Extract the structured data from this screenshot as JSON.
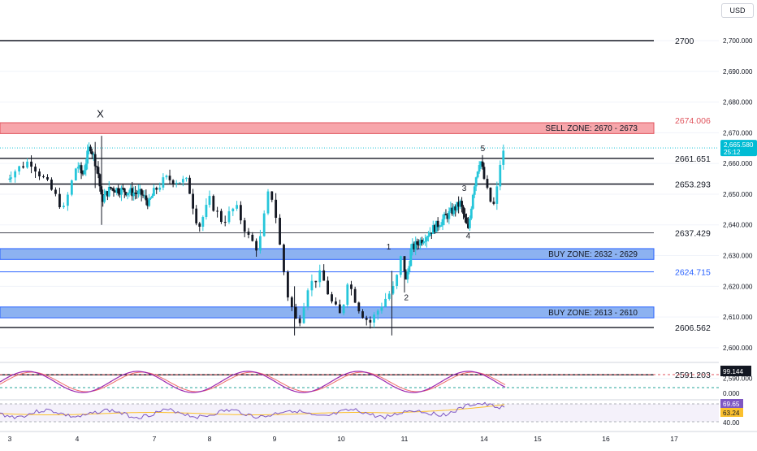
{
  "currency": "USD",
  "colors": {
    "up": "#26c6da",
    "down": "#131722",
    "sell_zone_fill": "#f7a1a7",
    "sell_zone_border": "#e0535c",
    "buy_zone_fill": "#86aef0",
    "buy_zone_border": "#2962ff",
    "red_price": "#e0535c",
    "blue_price": "#2962ff",
    "price_badge": "#00bcd4",
    "stoch_line": "#9c27b0",
    "rsi_line": "#7e57c2",
    "rsi_ma": "#fbc02d"
  },
  "chart_data": {
    "type": "candlestick",
    "price_axis": {
      "ticks": [
        "2,700.000",
        "2,690.000",
        "2,680.000",
        "2,670.000",
        "2,660.000",
        "2,650.000",
        "2,640.000",
        "2,630.000",
        "2,620.000",
        "2,610.000",
        "2,600.000",
        "2,590.000"
      ],
      "tick_values": [
        2700,
        2690,
        2680,
        2670,
        2660,
        2650,
        2640,
        2630,
        2620,
        2610,
        2600,
        2590
      ],
      "range": [
        2585,
        2705
      ]
    },
    "time_axis": {
      "ticks": [
        "3",
        "4",
        "7",
        "8",
        "9",
        "10",
        "11",
        "14",
        "15",
        "16",
        "17"
      ]
    },
    "current_price": {
      "value": "2,665.580",
      "countdown": "25:12"
    },
    "zones": [
      {
        "label": "SELL ZONE: 2670 - 2673",
        "low": 2670,
        "high": 2673,
        "kind": "sell"
      },
      {
        "label": "BUY ZONE: 2632 - 2629",
        "low": 2629,
        "high": 2632,
        "kind": "buy"
      },
      {
        "label": "BUY ZONE: 2613 - 2610",
        "low": 2610,
        "high": 2613,
        "kind": "buy"
      }
    ],
    "levels": [
      {
        "label": "2700",
        "value": 2700,
        "style": "black"
      },
      {
        "label": "2674.006",
        "value": 2674.006,
        "style": "red-text"
      },
      {
        "label": "2661.651",
        "value": 2661.651,
        "style": "black"
      },
      {
        "label": "2653.293",
        "value": 2653.293,
        "style": "black"
      },
      {
        "label": "2637.429",
        "value": 2637.429,
        "style": "thin"
      },
      {
        "label": "2624.715",
        "value": 2624.715,
        "style": "blue"
      },
      {
        "label": "2606.562",
        "value": 2606.562,
        "style": "black"
      },
      {
        "label": "2591.203",
        "value": 2591.203,
        "style": "black"
      }
    ],
    "wave_labels": [
      {
        "text": "X",
        "day": 4.9,
        "price": 2675
      },
      {
        "text": "1",
        "day": 10.75,
        "price": 2632
      },
      {
        "text": "2",
        "day": 11.07,
        "price": 2615.5
      },
      {
        "text": "3",
        "day": 13.25,
        "price": 2651
      },
      {
        "text": "4",
        "day": 13.4,
        "price": 2635.5
      },
      {
        "text": "5",
        "day": 13.95,
        "price": 2664
      }
    ],
    "stochastic": {
      "value": "99.144",
      "overbought": 80,
      "oversold": 20,
      "zero_label": "0.000"
    },
    "rsi": {
      "value": "69.65",
      "ma_value": "63.24",
      "level_label": "40.00"
    }
  }
}
